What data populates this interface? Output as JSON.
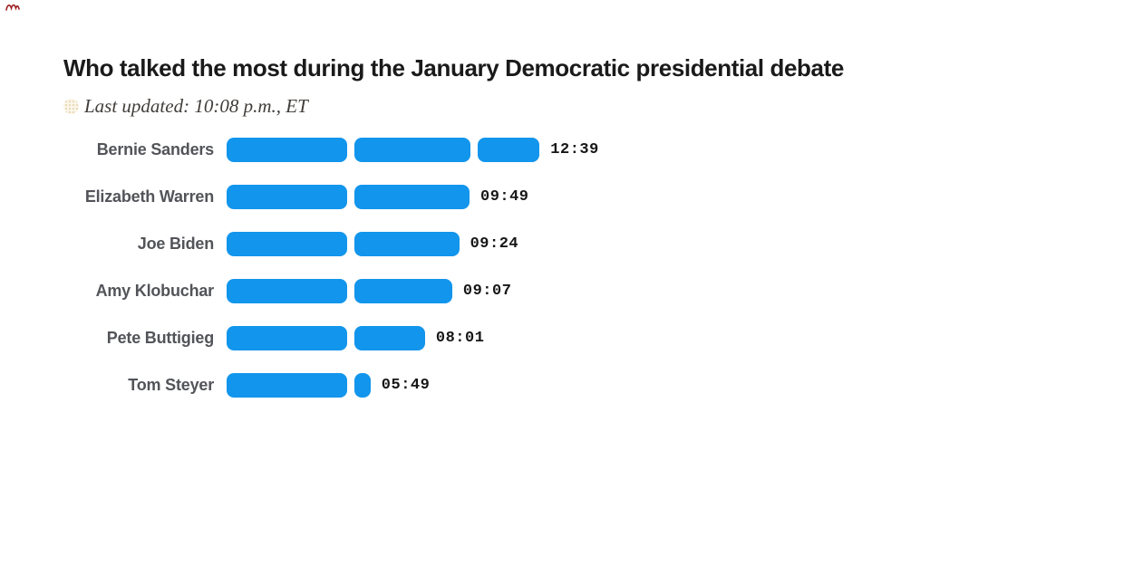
{
  "page": {
    "background_color": "#ffffff"
  },
  "header": {
    "title": "Who talked the most during the January Democratic presidential debate",
    "updated_label": "Last updated: 10:08 p.m., ET",
    "updated_icon": "pulse-dot-icon"
  },
  "chart_data": {
    "type": "bar",
    "orientation": "horizontal",
    "title": "Who talked the most during the January Democratic presidential debate",
    "subtitle": "Last updated: 10:08 p.m., ET",
    "unit": "speaking time (mm:ss)",
    "categories": [
      "Bernie Sanders",
      "Elizabeth Warren",
      "Joe Biden",
      "Amy Klobuchar",
      "Pete Buttigieg",
      "Tom Steyer"
    ],
    "values": [
      "12:39",
      "09:49",
      "09:24",
      "09:07",
      "08:01",
      "05:49"
    ],
    "values_minutes": [
      12.65,
      9.82,
      9.4,
      9.12,
      8.02,
      5.82
    ],
    "segment_minutes": 5,
    "xlim_minutes": [
      0,
      13
    ],
    "bar_color": "#1295ec",
    "label_color": "#525459",
    "value_color": "#161616",
    "grid": "off",
    "legend": "none"
  }
}
